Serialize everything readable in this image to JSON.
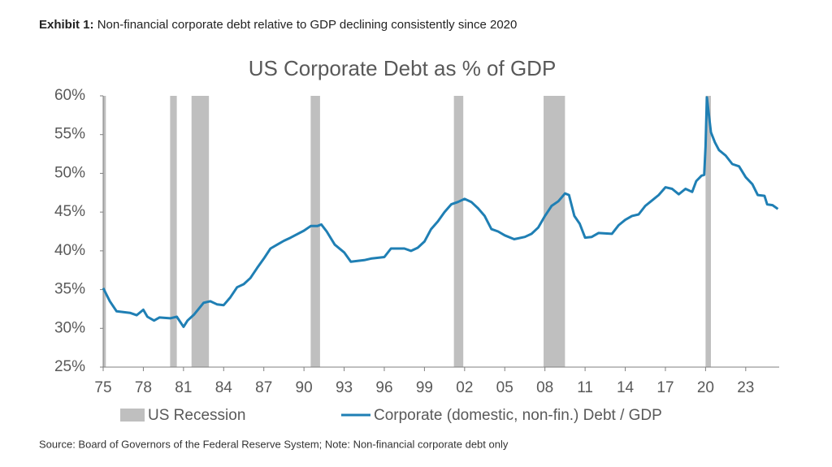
{
  "header": {
    "label": "Exhibit 1:",
    "text": "Non-financial corporate debt relative to GDP declining consistently since 2020"
  },
  "chart_data": {
    "type": "line",
    "title": "US Corporate Debt as % of GDP",
    "xlim": [
      1975,
      2025.5
    ],
    "xticks": [
      {
        "value": 1975,
        "label": "75"
      },
      {
        "value": 1978,
        "label": "78"
      },
      {
        "value": 1981,
        "label": "81"
      },
      {
        "value": 1984,
        "label": "84"
      },
      {
        "value": 1987,
        "label": "87"
      },
      {
        "value": 1990,
        "label": "90"
      },
      {
        "value": 1993,
        "label": "93"
      },
      {
        "value": 1996,
        "label": "96"
      },
      {
        "value": 1999,
        "label": "99"
      },
      {
        "value": 2002,
        "label": "02"
      },
      {
        "value": 2005,
        "label": "05"
      },
      {
        "value": 2008,
        "label": "08"
      },
      {
        "value": 2011,
        "label": "11"
      },
      {
        "value": 2014,
        "label": "14"
      },
      {
        "value": 2017,
        "label": "17"
      },
      {
        "value": 2020,
        "label": "20"
      },
      {
        "value": 2023,
        "label": "23"
      }
    ],
    "ylim": [
      25,
      60
    ],
    "yticks": [
      {
        "value": 25,
        "label": "25%"
      },
      {
        "value": 30,
        "label": "30%"
      },
      {
        "value": 35,
        "label": "35%"
      },
      {
        "value": 40,
        "label": "40%"
      },
      {
        "value": 45,
        "label": "45%"
      },
      {
        "value": 50,
        "label": "50%"
      },
      {
        "value": 55,
        "label": "55%"
      },
      {
        "value": 60,
        "label": "60%"
      }
    ],
    "recessions": {
      "name": "US Recession",
      "color": "#bfbfbf",
      "periods": [
        [
          1975.0,
          1975.2
        ],
        [
          1980.0,
          1980.5
        ],
        [
          1981.6,
          1982.9
        ],
        [
          1990.5,
          1991.2
        ],
        [
          2001.2,
          2001.9
        ],
        [
          2007.9,
          2009.5
        ],
        [
          2020.0,
          2020.4
        ]
      ]
    },
    "series": [
      {
        "name": "Corporate (domestic, non-fin.) Debt / GDP",
        "color": "#1f7fb4",
        "x": [
          1975.0,
          1975.5,
          1976.0,
          1977.0,
          1977.5,
          1978.0,
          1978.3,
          1978.8,
          1979.2,
          1980.0,
          1980.5,
          1981.0,
          1981.3,
          1981.8,
          1982.5,
          1983.0,
          1983.5,
          1984.0,
          1984.5,
          1985.0,
          1985.5,
          1986.0,
          1986.5,
          1987.0,
          1987.5,
          1988.0,
          1988.5,
          1989.0,
          1990.0,
          1990.5,
          1991.0,
          1991.3,
          1991.7,
          1992.3,
          1993.0,
          1993.5,
          1994.5,
          1995.0,
          1996.0,
          1996.5,
          1997.5,
          1998.0,
          1998.5,
          1999.0,
          1999.5,
          2000.0,
          2000.5,
          2001.0,
          2001.5,
          2002.0,
          2002.5,
          2003.0,
          2003.5,
          2004.0,
          2004.5,
          2005.0,
          2005.7,
          2006.5,
          2007.0,
          2007.5,
          2008.0,
          2008.5,
          2009.0,
          2009.5,
          2009.8,
          2010.2,
          2010.6,
          2011.0,
          2011.5,
          2012.0,
          2013.0,
          2013.5,
          2014.0,
          2014.5,
          2015.0,
          2015.5,
          2016.0,
          2016.5,
          2017.0,
          2017.5,
          2018.0,
          2018.5,
          2019.0,
          2019.3,
          2019.7,
          2019.9,
          2020.0,
          2020.1,
          2020.4,
          2020.7,
          2021.0,
          2021.5,
          2022.0,
          2022.5,
          2023.0,
          2023.5,
          2023.9,
          2024.4,
          2024.6,
          2025.0,
          2025.4
        ],
        "values": [
          35.2,
          33.5,
          32.2,
          32.0,
          31.7,
          32.4,
          31.5,
          31.0,
          31.4,
          31.3,
          31.5,
          30.2,
          31.0,
          31.8,
          33.3,
          33.5,
          33.1,
          33.0,
          34.0,
          35.3,
          35.7,
          36.5,
          37.8,
          39.0,
          40.3,
          40.8,
          41.3,
          41.7,
          42.6,
          43.2,
          43.2,
          43.4,
          42.5,
          40.8,
          39.8,
          38.6,
          38.8,
          39.0,
          39.2,
          40.3,
          40.3,
          40.0,
          40.4,
          41.2,
          42.8,
          43.8,
          45.0,
          46.0,
          46.3,
          46.7,
          46.3,
          45.5,
          44.5,
          42.8,
          42.5,
          42.0,
          41.5,
          41.8,
          42.2,
          43.0,
          44.5,
          45.8,
          46.4,
          47.4,
          47.2,
          44.5,
          43.5,
          41.7,
          41.8,
          42.3,
          42.2,
          43.3,
          44.0,
          44.5,
          44.7,
          45.8,
          46.5,
          47.2,
          48.2,
          48.0,
          47.3,
          48.0,
          47.6,
          49.0,
          49.7,
          49.8,
          53.5,
          59.8,
          55.3,
          54.0,
          53.0,
          52.3,
          51.2,
          50.9,
          49.5,
          48.6,
          47.2,
          47.1,
          46.0,
          45.9,
          45.4
        ]
      }
    ]
  },
  "footer": {
    "source": "Source: Board of Governors of the Federal Reserve System; Note: Non-financial corporate debt only"
  }
}
